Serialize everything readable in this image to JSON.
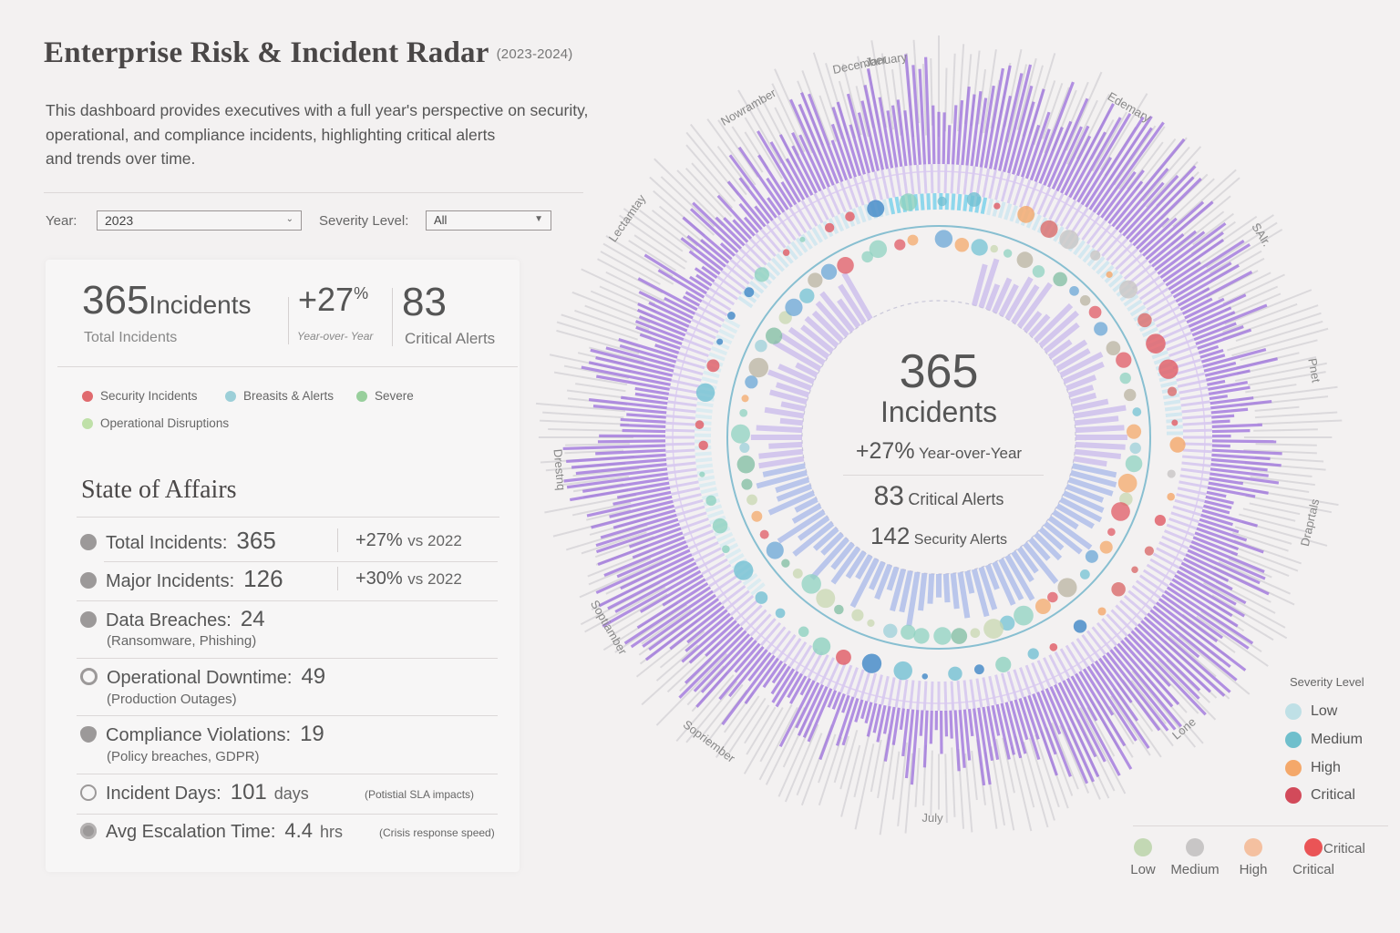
{
  "header": {
    "title": "Enterprise Risk & Incident Radar",
    "years": "(2023-2024)",
    "description_lines": [
      "This dashboard provides executives with a full year's perspective on security,",
      "operational, and compliance incidents, highlighting critical alerts",
      "and trends over time."
    ]
  },
  "filters": {
    "year_label": "Year:",
    "year_value": "2023",
    "severity_label": "Severity Level:",
    "severity_value": "All"
  },
  "kpis": {
    "total_value": "365",
    "total_unit": "Incidents",
    "total_label": "Total Incidents",
    "yoy_value": "+27",
    "yoy_pct": "%",
    "yoy_label": "Year-over- Year",
    "critical_value": "83",
    "critical_label": "Critical Alerts"
  },
  "category_legend": [
    {
      "label": "Security Incidents",
      "color": "#e06a6e"
    },
    {
      "label": "Breasits & Alerts",
      "color": "#9ccfd8"
    },
    {
      "label": "Severe",
      "color": "#98cf9c"
    },
    {
      "label": "Operational Disruptions",
      "color": "#bfe0a8"
    }
  ],
  "state_of_affairs": {
    "title": "State of Affairs",
    "rows": [
      {
        "icon": "pie-chart-icon",
        "label": "Total Incidents:",
        "value": "365",
        "right_value": "+27%",
        "right_text": "vs 2022"
      },
      {
        "icon": "donut-chart-icon",
        "label": "Major Incidents:",
        "value": "126",
        "right_value": "+30%",
        "right_text": "vs 2022"
      },
      {
        "icon": "grid-icon",
        "label": "Data Breaches:",
        "value": "24",
        "note": "(Ransomware, Phishing)"
      },
      {
        "icon": "cloud-icon",
        "label": "Operational Downtime:",
        "value": "49",
        "note": "(Production Outages)"
      },
      {
        "icon": "shield-icon",
        "label": "Compliance Violations:",
        "value": "19",
        "note": "(Policy breaches, GDPR)"
      },
      {
        "icon": "timer-icon",
        "label": "Incident Days:",
        "value": "101",
        "unit": "days",
        "note": "(Potistial SLA impacts)"
      },
      {
        "icon": "target-icon",
        "label": "Avg Escalation Time:",
        "value": "4.4",
        "unit": "hrs",
        "note": "(Crisis response speed)"
      }
    ]
  },
  "center": {
    "total": "365",
    "total_label": "Incidents",
    "yoy": "+27%",
    "yoy_label": "Year-over-Year",
    "critical": "83",
    "critical_label": "Critical Alerts",
    "security": "142",
    "security_label": "Security Alerts"
  },
  "severity_legend": {
    "title": "Severity Level",
    "items": [
      {
        "label": "Low",
        "color": "#bfe0e6"
      },
      {
        "label": "Medium",
        "color": "#6fbfcc"
      },
      {
        "label": "High",
        "color": "#f4a86a"
      },
      {
        "label": "Critical",
        "color": "#d24a5a"
      }
    ]
  },
  "bottom_legend": {
    "items": [
      {
        "label": "Low",
        "color": "#c3d8b4"
      },
      {
        "label": "Medium",
        "color": "#c8c6c6"
      },
      {
        "label": "High",
        "color": "#f4c0a0"
      },
      {
        "label": "Critical",
        "color": "#ea5456"
      }
    ],
    "extra_label": "Critical"
  },
  "chart_data": {
    "type": "radial",
    "title": "Enterprise Risk & Incident Radar",
    "center": [
      1030,
      480
    ],
    "month_labels": [
      {
        "label": "January",
        "angle": -8
      },
      {
        "label": "Edemary",
        "angle": 30
      },
      {
        "label": "SAlr.",
        "angle": 58
      },
      {
        "label": "Pnet",
        "angle": 80
      },
      {
        "label": "Draprtals",
        "angle": 103
      },
      {
        "label": "Lone",
        "angle": 140
      },
      {
        "label": "July",
        "angle": 181
      },
      {
        "label": "Sopriember",
        "angle": 217
      },
      {
        "label": "Soptiamber",
        "angle": 240
      },
      {
        "label": "Drestnq",
        "angle": 265
      },
      {
        "label": "Lectamtay",
        "angle": 305
      },
      {
        "label": "Nowramber",
        "angle": 330
      },
      {
        "label": "December",
        "angle": 348
      }
    ],
    "days": 365,
    "outer_bar_color": "#9b6fdc",
    "inner_bar_color": "#a8b8ea",
    "ring_line_color": "#5aa9c3",
    "totals": {
      "incidents": 365,
      "yoy_change_pct": 27,
      "critical_alerts": 83,
      "security_alerts": 142
    }
  }
}
